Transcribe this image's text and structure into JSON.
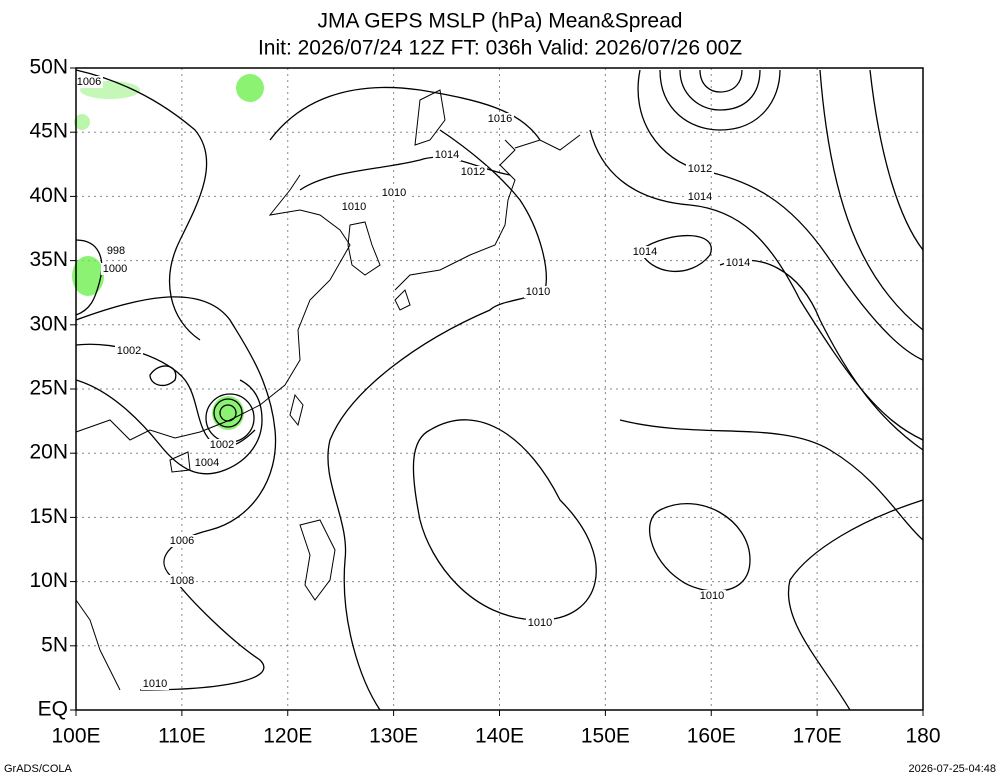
{
  "title": "JMA GEPS MSLP (hPa) Mean&Spread",
  "subtitle": "Init: 2026/07/24 12Z  FT: 036h  Valid: 2026/07/26 00Z",
  "map": {
    "xlim": [
      100,
      180
    ],
    "ylim": [
      0,
      50
    ],
    "xticks": [
      {
        "value": 100,
        "label": "100E"
      },
      {
        "value": 110,
        "label": "110E"
      },
      {
        "value": 120,
        "label": "120E"
      },
      {
        "value": 130,
        "label": "130E"
      },
      {
        "value": 140,
        "label": "140E"
      },
      {
        "value": 150,
        "label": "150E"
      },
      {
        "value": 160,
        "label": "160E"
      },
      {
        "value": 170,
        "label": "170E"
      },
      180
    ],
    "yticks": [
      {
        "value": 0,
        "label": "EQ"
      },
      {
        "value": 5,
        "label": "5N"
      },
      {
        "value": 10,
        "label": "10N"
      },
      {
        "value": 15,
        "label": "15N"
      },
      {
        "value": 20,
        "label": "20N"
      },
      {
        "value": 25,
        "label": "25N"
      },
      {
        "value": 30,
        "label": "30N"
      },
      {
        "value": 35,
        "label": "35N"
      },
      {
        "value": 40,
        "label": "40N"
      },
      {
        "value": 45,
        "label": "45N"
      },
      {
        "value": 50,
        "label": "50N"
      }
    ],
    "grid": true,
    "contour_labels": [
      1006,
      998,
      1000,
      1002,
      1002,
      1004,
      1006,
      1008,
      1010,
      1016,
      1014,
      1012,
      1010,
      1010,
      1010,
      1014,
      1014,
      1012,
      1014,
      1010,
      1010
    ]
  },
  "footer": {
    "left": "GrADS/COLA",
    "right": "2026-07-25-04:48"
  }
}
